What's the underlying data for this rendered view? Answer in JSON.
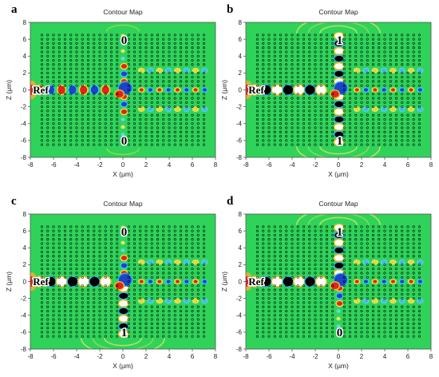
{
  "figure": {
    "panels": [
      {
        "letter": "a",
        "title": "Contour Map",
        "xlabel": "X (μm)",
        "ylabel": "Z (μm)",
        "ref_label": "Ref",
        "top_label": "0",
        "bottom_label": "0"
      },
      {
        "letter": "b",
        "title": "Contour Map",
        "xlabel": "X (μm)",
        "ylabel": "Z (μm)",
        "ref_label": "Ref",
        "top_label": "1",
        "bottom_label": "1"
      },
      {
        "letter": "c",
        "title": "Contour Map",
        "xlabel": "X (μm)",
        "ylabel": "Z (μm)",
        "ref_label": "Ref",
        "top_label": "0",
        "bottom_label": "1"
      },
      {
        "letter": "d",
        "title": "Contour Map",
        "xlabel": "X (μm)",
        "ylabel": "Z (μm)",
        "ref_label": "Ref",
        "top_label": "1",
        "bottom_label": "0"
      }
    ]
  },
  "chart_data": {
    "type": "heatmap",
    "colors": {
      "background": "#2fd35a",
      "positive": "#e0241c",
      "negative": "#1c44c8",
      "mid_pos": "#f0e03c",
      "mid_neg": "#3cc8f0",
      "rod": "#000000",
      "peak": "#ffffff"
    },
    "xlim": [
      -8,
      8
    ],
    "ylim": [
      -8,
      8
    ],
    "xticks": [
      -8,
      -6,
      -4,
      -2,
      0,
      2,
      4,
      6,
      8
    ],
    "yticks": [
      8,
      6,
      4,
      2,
      0,
      -2,
      -4,
      -6,
      -8
    ],
    "rod_lattice": {
      "x_range": [
        -7,
        7
      ],
      "z_range": [
        -6.5,
        6.5
      ],
      "spacing": 0.5,
      "waveguides_removed": [
        "z = 0, x <= 0",
        "x = 0",
        "z = 0, x >= 1.5",
        "z = ±2.5, x >= 1.5"
      ]
    },
    "panels": [
      {
        "id": "a",
        "ref": 1,
        "top_output": 0,
        "bottom_output": 0
      },
      {
        "id": "b",
        "ref": 1,
        "top_output": 1,
        "bottom_output": 1
      },
      {
        "id": "c",
        "ref": 1,
        "top_output": 0,
        "bottom_output": 1
      },
      {
        "id": "d",
        "ref": 1,
        "top_output": 1,
        "bottom_output": 0
      }
    ]
  }
}
